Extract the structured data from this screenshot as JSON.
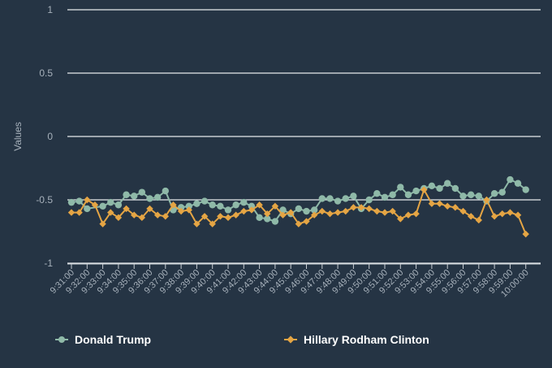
{
  "chart_data": {
    "type": "line",
    "title": "",
    "xlabel": "",
    "ylabel": "Values",
    "ylim": [
      -1,
      1
    ],
    "yticks": [
      1,
      0.5,
      0,
      -0.5,
      -1
    ],
    "xticks": [
      "9:31:00",
      "9:32:00",
      "9:33:00",
      "9:34:00",
      "9:35:00",
      "9:36:00",
      "9:37:00",
      "9:38:00",
      "9:39:00",
      "9:40:00",
      "9:41:00",
      "9:42:00",
      "9:43:00",
      "9:44:00",
      "9:45:00",
      "9:46:00",
      "9:47:00",
      "9:48:00",
      "9:49:00",
      "9:50:00",
      "9:51:00",
      "9:52:00",
      "9:53:00",
      "9:54:00",
      "9:55:00",
      "9:56:00",
      "9:57:00",
      "9:58:00",
      "9:59:00",
      "10:00:00"
    ],
    "series": [
      {
        "name": "Donald Trump",
        "color": "#8fb9a8",
        "marker": "circle",
        "points": [
          [
            0,
            -0.52
          ],
          [
            0.5,
            -0.51
          ],
          [
            1,
            -0.57
          ],
          [
            2,
            -0.55
          ],
          [
            2.5,
            -0.52
          ],
          [
            3,
            -0.54
          ],
          [
            3.5,
            -0.46
          ],
          [
            4,
            -0.47
          ],
          [
            4.5,
            -0.44
          ],
          [
            5,
            -0.49
          ],
          [
            5.5,
            -0.48
          ],
          [
            6,
            -0.43
          ],
          [
            6.5,
            -0.58
          ],
          [
            7,
            -0.56
          ],
          [
            7.5,
            -0.55
          ],
          [
            8,
            -0.53
          ],
          [
            8.5,
            -0.51
          ],
          [
            9,
            -0.54
          ],
          [
            9.5,
            -0.55
          ],
          [
            10,
            -0.58
          ],
          [
            10.5,
            -0.54
          ],
          [
            11,
            -0.52
          ],
          [
            11.5,
            -0.55
          ],
          [
            12,
            -0.64
          ],
          [
            12.5,
            -0.65
          ],
          [
            13,
            -0.67
          ],
          [
            13.5,
            -0.58
          ],
          [
            14,
            -0.61
          ],
          [
            14.5,
            -0.57
          ],
          [
            15,
            -0.59
          ],
          [
            15.5,
            -0.58
          ],
          [
            16,
            -0.49
          ],
          [
            16.5,
            -0.49
          ],
          [
            17,
            -0.51
          ],
          [
            17.5,
            -0.49
          ],
          [
            18,
            -0.47
          ],
          [
            18.5,
            -0.57
          ],
          [
            19,
            -0.5
          ],
          [
            19.5,
            -0.45
          ],
          [
            20,
            -0.48
          ],
          [
            20.5,
            -0.46
          ],
          [
            21,
            -0.4
          ],
          [
            21.5,
            -0.46
          ],
          [
            22,
            -0.43
          ],
          [
            22.5,
            -0.41
          ],
          [
            23,
            -0.39
          ],
          [
            23.5,
            -0.41
          ],
          [
            24,
            -0.37
          ],
          [
            24.5,
            -0.41
          ],
          [
            25,
            -0.47
          ],
          [
            25.5,
            -0.46
          ],
          [
            26,
            -0.47
          ],
          [
            26.5,
            -0.51
          ],
          [
            27,
            -0.45
          ],
          [
            27.5,
            -0.44
          ],
          [
            28,
            -0.34
          ],
          [
            28.5,
            -0.37
          ],
          [
            29,
            -0.42
          ]
        ]
      },
      {
        "name": "Hillary Rodham Clinton",
        "color": "#e5a544",
        "marker": "diamond",
        "points": [
          [
            0,
            -0.6
          ],
          [
            0.5,
            -0.6
          ],
          [
            1,
            -0.5
          ],
          [
            1.5,
            -0.54
          ],
          [
            2,
            -0.69
          ],
          [
            2.5,
            -0.6
          ],
          [
            3,
            -0.64
          ],
          [
            3.5,
            -0.57
          ],
          [
            4,
            -0.62
          ],
          [
            4.5,
            -0.64
          ],
          [
            5,
            -0.57
          ],
          [
            5.5,
            -0.62
          ],
          [
            6,
            -0.63
          ],
          [
            6.5,
            -0.54
          ],
          [
            7,
            -0.59
          ],
          [
            7.5,
            -0.58
          ],
          [
            8,
            -0.69
          ],
          [
            8.5,
            -0.63
          ],
          [
            9,
            -0.69
          ],
          [
            9.5,
            -0.63
          ],
          [
            10,
            -0.64
          ],
          [
            10.5,
            -0.62
          ],
          [
            11,
            -0.59
          ],
          [
            11.5,
            -0.58
          ],
          [
            12,
            -0.54
          ],
          [
            12.5,
            -0.61
          ],
          [
            13,
            -0.55
          ],
          [
            13.5,
            -0.62
          ],
          [
            14,
            -0.6
          ],
          [
            14.5,
            -0.69
          ],
          [
            15,
            -0.67
          ],
          [
            15.5,
            -0.62
          ],
          [
            16,
            -0.59
          ],
          [
            16.5,
            -0.61
          ],
          [
            17,
            -0.6
          ],
          [
            17.5,
            -0.59
          ],
          [
            18,
            -0.56
          ],
          [
            18.5,
            -0.56
          ],
          [
            19,
            -0.57
          ],
          [
            19.5,
            -0.59
          ],
          [
            20,
            -0.6
          ],
          [
            20.5,
            -0.59
          ],
          [
            21,
            -0.65
          ],
          [
            21.5,
            -0.62
          ],
          [
            22,
            -0.61
          ],
          [
            22.5,
            -0.42
          ],
          [
            23,
            -0.53
          ],
          [
            23.5,
            -0.53
          ],
          [
            24,
            -0.55
          ],
          [
            24.5,
            -0.56
          ],
          [
            25,
            -0.59
          ],
          [
            25.5,
            -0.63
          ],
          [
            26,
            -0.66
          ],
          [
            26.5,
            -0.5
          ],
          [
            27,
            -0.63
          ],
          [
            27.5,
            -0.61
          ],
          [
            28,
            -0.6
          ],
          [
            28.5,
            -0.62
          ],
          [
            29,
            -0.77
          ]
        ]
      }
    ],
    "legend": {
      "position": "bottom",
      "entries": [
        "Donald Trump",
        "Hillary Rodham Clinton"
      ]
    }
  }
}
